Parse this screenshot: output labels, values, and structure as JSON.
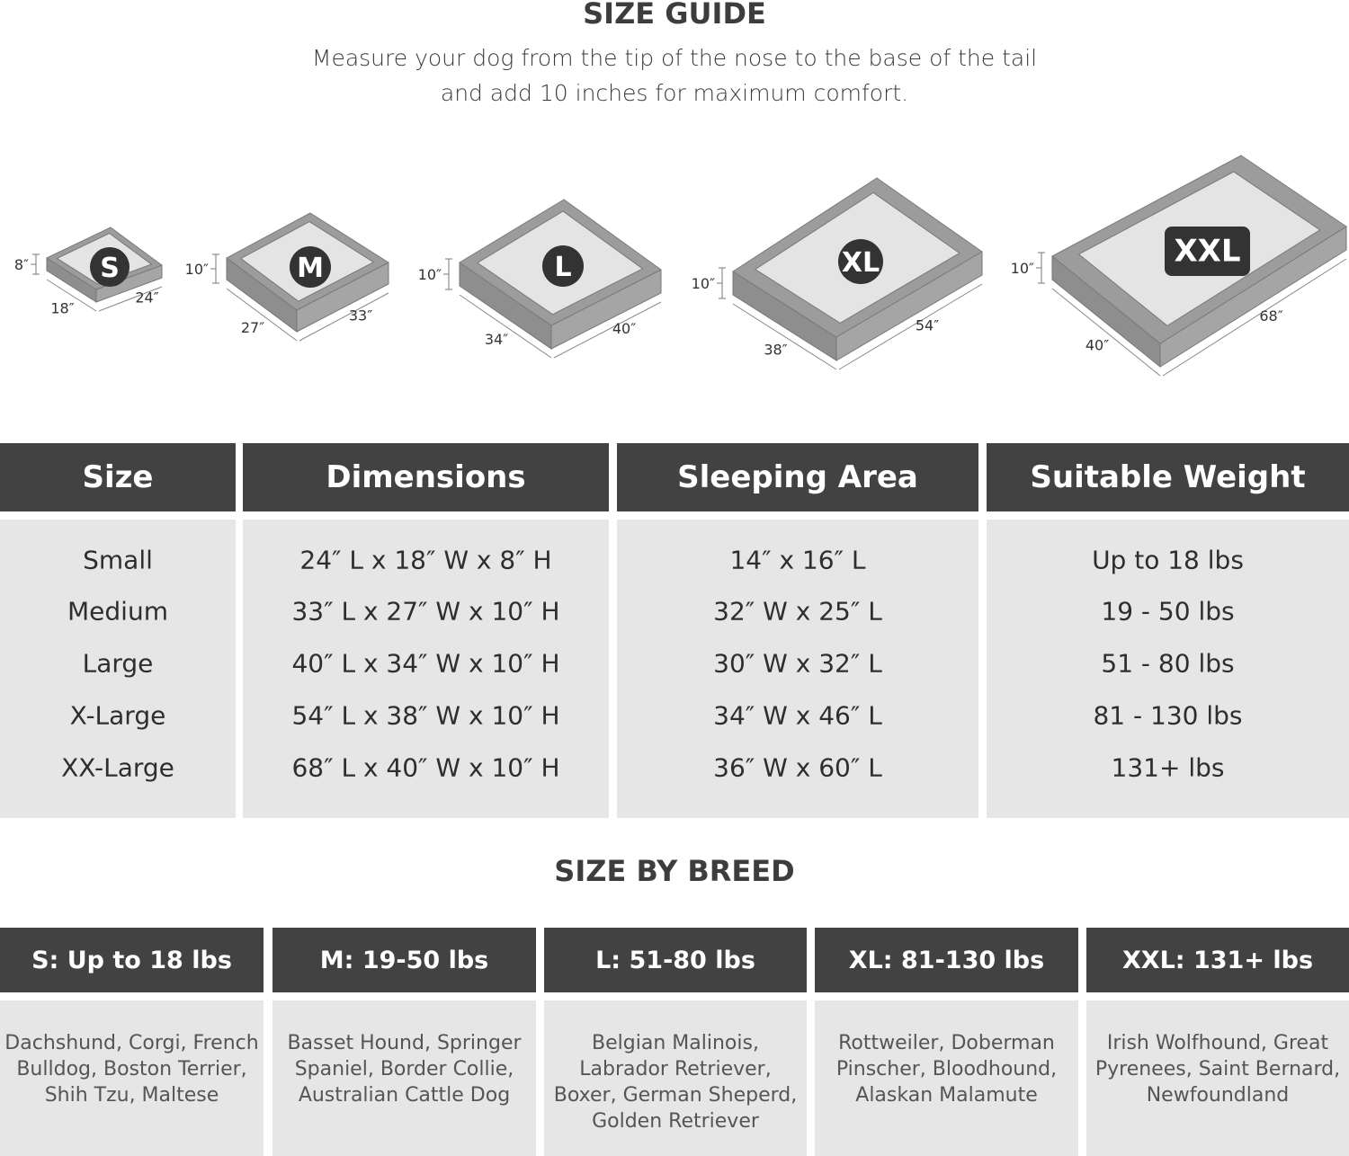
{
  "title": "SIZE GUIDE",
  "subtitle_lines": [
    "Measure your dog from the tip of the nose to the base of the tail",
    "and add 10 inches for maximum comfort."
  ],
  "colors": {
    "header": "#414241",
    "body": "#e6e6e6",
    "bed_frame": "#9c9c9c",
    "bed_surface": "#e4e4e4",
    "badge": "#333333"
  },
  "beds": [
    {
      "badge": "S",
      "height": "8″",
      "width": "18″",
      "length": "24″"
    },
    {
      "badge": "M",
      "height": "10″",
      "width": "27″",
      "length": "33″"
    },
    {
      "badge": "L",
      "height": "10″",
      "width": "34″",
      "length": "40″"
    },
    {
      "badge": "XL",
      "height": "10″",
      "width": "38″",
      "length": "54″"
    },
    {
      "badge": "XXL",
      "height": "10″",
      "width": "40″",
      "length": "68″"
    }
  ],
  "size_table": {
    "headers": [
      "Size",
      "Dimensions",
      "Sleeping Area",
      "Suitable Weight"
    ],
    "columns": [
      [
        "Small",
        "Medium",
        "Large",
        "X-Large",
        "XX-Large"
      ],
      [
        "24″ L x 18″ W x 8″ H",
        "33″ L x 27″ W x 10″ H",
        "40″ L x 34″ W x 10″ H",
        "54″ L x 38″ W x 10″ H",
        "68″ L x 40″ W x 10″ H"
      ],
      [
        "14″ x 16″ L",
        "32″ W x 25″ L",
        "30″ W x 32″ L",
        "34″ W x 46″ L",
        "36″ W x 60″ L"
      ],
      [
        "Up to 18 lbs",
        "19 - 50 lbs",
        "51 - 80 lbs",
        "81 - 130 lbs",
        "131+ lbs"
      ]
    ]
  },
  "breed_title": "SIZE BY BREED",
  "breeds": [
    {
      "header": "S: Up to 18 lbs",
      "lines": [
        "Dachshund, Corgi, French",
        "Bulldog, Boston Terrier,",
        "Shih Tzu, Maltese"
      ]
    },
    {
      "header": "M: 19-50 lbs",
      "lines": [
        "Basset Hound, Springer",
        "Spaniel, Border Collie,",
        "Australian Cattle Dog"
      ]
    },
    {
      "header": "L: 51-80 lbs",
      "lines": [
        "Belgian Malinois,",
        "Labrador Retriever,",
        "Boxer, German Sheperd,",
        "Golden Retriever"
      ]
    },
    {
      "header": "XL: 81-130 lbs",
      "lines": [
        "Rottweiler, Doberman",
        "Pinscher, Bloodhound,",
        "Alaskan Malamute"
      ]
    },
    {
      "header": "XXL: 131+ lbs",
      "lines": [
        "Irish Wolfhound, Great",
        "Pyrenees, Saint Bernard,",
        "Newfoundland"
      ]
    }
  ]
}
